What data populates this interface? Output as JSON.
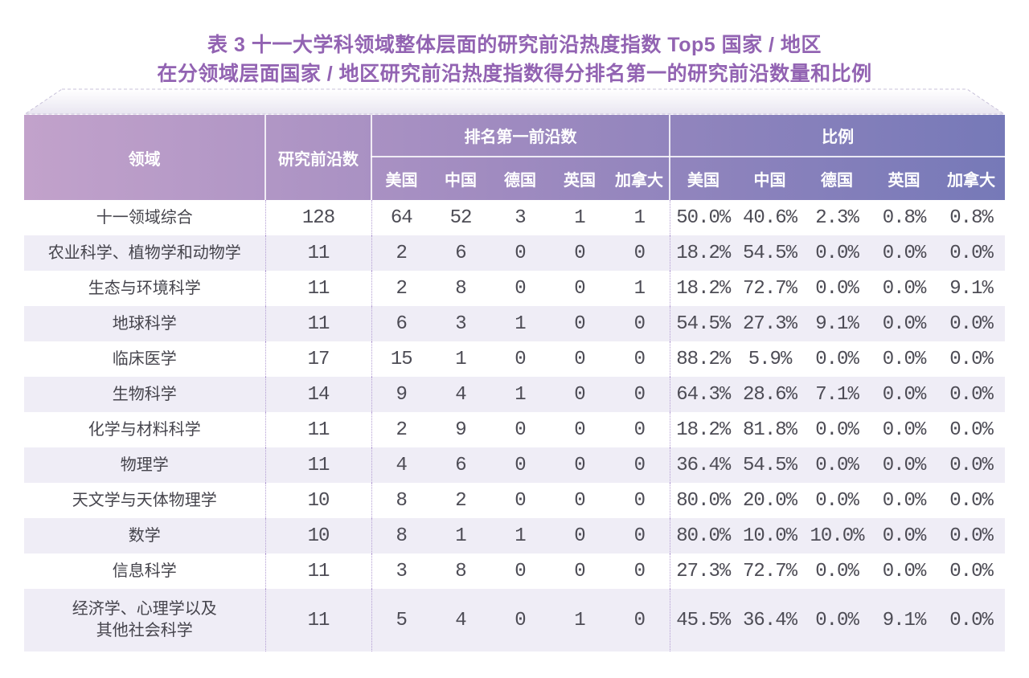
{
  "title": {
    "line1": "表 3 十一大学科领域整体层面的研究前沿热度指数 Top5 国家 / 地区",
    "line2": "在分领域层面国家 / 地区研究前沿热度指数得分排名第一的研究前沿数量和比例"
  },
  "colors": {
    "title_text": "#9263b2",
    "header_gradient_left": "#c2a2cb",
    "header_gradient_mid": "#a08bc0",
    "header_gradient_right": "#7679b8",
    "header_text": "#ffffff",
    "row_bg": "#ffffff",
    "row_alt_bg": "#efedf6",
    "dotted_separator": "#b29cd2",
    "body_text": "#4d4c55"
  },
  "table": {
    "header": {
      "field": "领域",
      "total": "研究前沿数",
      "group_counts": "排名第一前沿数",
      "group_ratios": "比例",
      "countries": [
        "美国",
        "中国",
        "德国",
        "英国",
        "加拿大"
      ]
    },
    "rows": [
      {
        "field": "十一领域综合",
        "total": "128",
        "counts": [
          "64",
          "52",
          "3",
          "1",
          "1"
        ],
        "ratios": [
          "50.0%",
          "40.6%",
          "2.3%",
          "0.8%",
          "0.8%"
        ]
      },
      {
        "field": "农业科学、植物学和动物学",
        "total": "11",
        "counts": [
          "2",
          "6",
          "0",
          "0",
          "0"
        ],
        "ratios": [
          "18.2%",
          "54.5%",
          "0.0%",
          "0.0%",
          "0.0%"
        ]
      },
      {
        "field": "生态与环境科学",
        "total": "11",
        "counts": [
          "2",
          "8",
          "0",
          "0",
          "1"
        ],
        "ratios": [
          "18.2%",
          "72.7%",
          "0.0%",
          "0.0%",
          "9.1%"
        ]
      },
      {
        "field": "地球科学",
        "total": "11",
        "counts": [
          "6",
          "3",
          "1",
          "0",
          "0"
        ],
        "ratios": [
          "54.5%",
          "27.3%",
          "9.1%",
          "0.0%",
          "0.0%"
        ]
      },
      {
        "field": "临床医学",
        "total": "17",
        "counts": [
          "15",
          "1",
          "0",
          "0",
          "0"
        ],
        "ratios": [
          "88.2%",
          "5.9%",
          "0.0%",
          "0.0%",
          "0.0%"
        ]
      },
      {
        "field": "生物科学",
        "total": "14",
        "counts": [
          "9",
          "4",
          "1",
          "0",
          "0"
        ],
        "ratios": [
          "64.3%",
          "28.6%",
          "7.1%",
          "0.0%",
          "0.0%"
        ]
      },
      {
        "field": "化学与材料科学",
        "total": "11",
        "counts": [
          "2",
          "9",
          "0",
          "0",
          "0"
        ],
        "ratios": [
          "18.2%",
          "81.8%",
          "0.0%",
          "0.0%",
          "0.0%"
        ]
      },
      {
        "field": "物理学",
        "total": "11",
        "counts": [
          "4",
          "6",
          "0",
          "0",
          "0"
        ],
        "ratios": [
          "36.4%",
          "54.5%",
          "0.0%",
          "0.0%",
          "0.0%"
        ]
      },
      {
        "field": "天文学与天体物理学",
        "total": "10",
        "counts": [
          "8",
          "2",
          "0",
          "0",
          "0"
        ],
        "ratios": [
          "80.0%",
          "20.0%",
          "0.0%",
          "0.0%",
          "0.0%"
        ]
      },
      {
        "field": "数学",
        "total": "10",
        "counts": [
          "8",
          "1",
          "1",
          "0",
          "0"
        ],
        "ratios": [
          "80.0%",
          "10.0%",
          "10.0%",
          "0.0%",
          "0.0%"
        ]
      },
      {
        "field": "信息科学",
        "total": "11",
        "counts": [
          "3",
          "8",
          "0",
          "0",
          "0"
        ],
        "ratios": [
          "27.3%",
          "72.7%",
          "0.0%",
          "0.0%",
          "0.0%"
        ]
      },
      {
        "field": "经济学、心理学以及\n其他社会科学",
        "total": "11",
        "counts": [
          "5",
          "4",
          "0",
          "1",
          "0"
        ],
        "ratios": [
          "45.5%",
          "36.4%",
          "0.0%",
          "9.1%",
          "0.0%"
        ]
      }
    ]
  }
}
